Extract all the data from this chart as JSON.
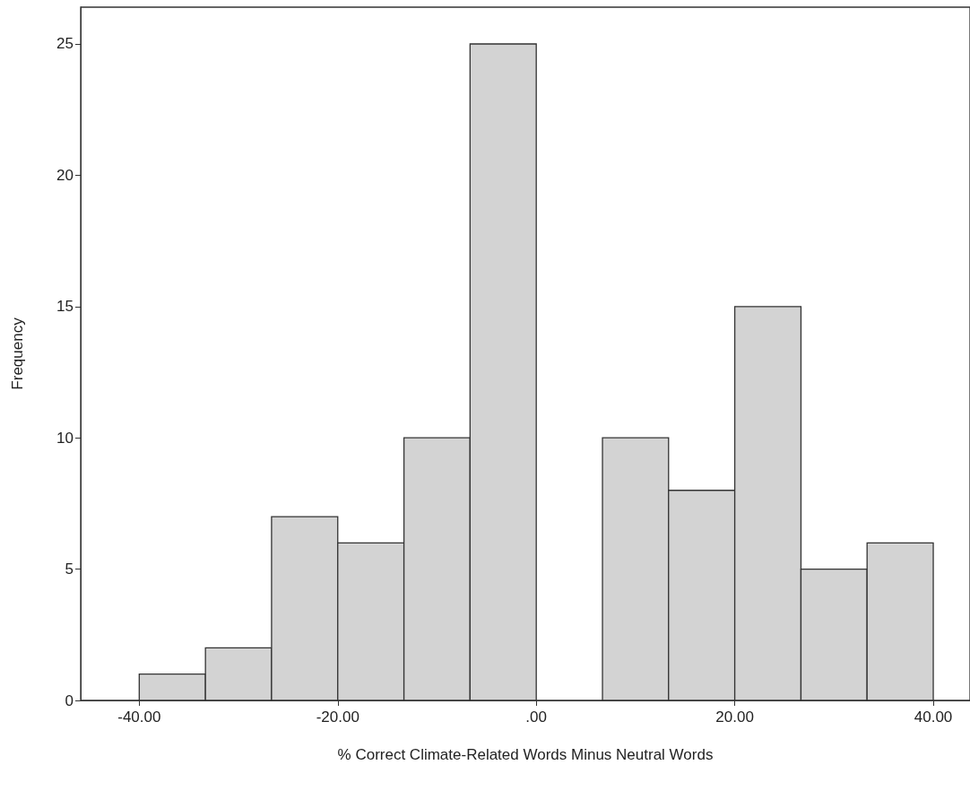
{
  "chart_data": {
    "type": "histogram",
    "xlabel": "% Correct Climate-Related Words Minus Neutral Words",
    "ylabel": "Frequency",
    "bins": [
      -40,
      -33.33,
      -26.67,
      -20,
      -13.33,
      -6.67,
      0,
      6.67,
      13.33,
      20,
      26.67,
      33.33,
      40
    ],
    "values": [
      1,
      2,
      7,
      6,
      10,
      25,
      0,
      10,
      8,
      15,
      5,
      6
    ],
    "color": "#d3d3d3",
    "xlim": [
      -45.9,
      43.7
    ],
    "xticks": [
      {
        "value": -40,
        "label": "-40.00"
      },
      {
        "value": -20,
        "label": "-20.00"
      },
      {
        "value": 0,
        "label": ".00"
      },
      {
        "value": 20,
        "label": "20.00"
      },
      {
        "value": 40,
        "label": "40.00"
      }
    ],
    "ylim": [
      0,
      26.4
    ],
    "yticks": [
      0,
      5,
      10,
      15,
      20,
      25
    ],
    "grid": false
  }
}
